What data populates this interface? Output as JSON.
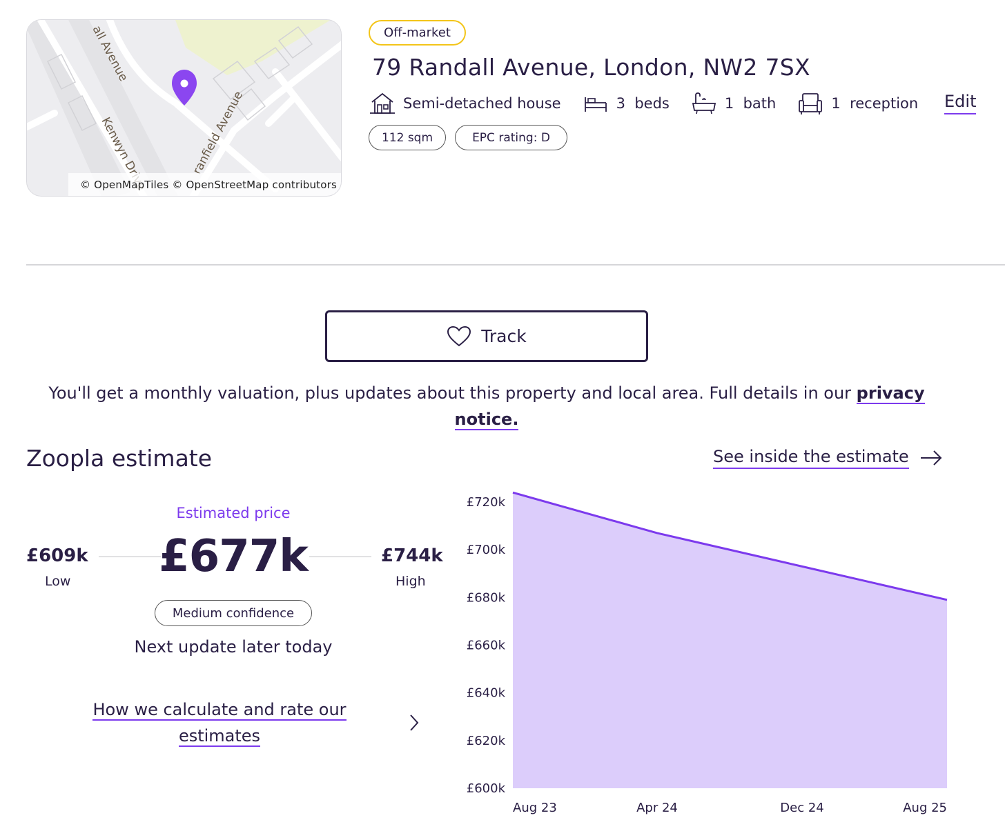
{
  "map": {
    "attribution": "© OpenMapTiles © OpenStreetMap contributors",
    "street_labels": [
      "all Avenue",
      "Kenwyn Drive",
      "ranfield Avenue"
    ]
  },
  "property": {
    "status_badge": "Off-market",
    "address": "79 Randall Avenue, London, NW2 7SX",
    "features": [
      {
        "icon": "house-icon",
        "value": "",
        "label": "Semi-detached house"
      },
      {
        "icon": "bed-icon",
        "value": "3",
        "label": "beds"
      },
      {
        "icon": "bath-icon",
        "value": "1",
        "label": "bath"
      },
      {
        "icon": "sofa-icon",
        "value": "1",
        "label": "reception"
      }
    ],
    "edit_label": "Edit",
    "size": "112 sqm",
    "epc": "EPC rating: D"
  },
  "track": {
    "button_label": "Track",
    "notice_text": "You'll get a monthly valuation, plus updates about this property and local area. Full details in our ",
    "privacy_link": "privacy notice."
  },
  "estimate": {
    "title": "Zoopla estimate",
    "see_inside": "See inside the estimate",
    "label": "Estimated price",
    "price": "£677k",
    "low_value": "£609k",
    "low_label": "Low",
    "high_value": "£744k",
    "high_label": "High",
    "confidence": "Medium confidence",
    "next_update": "Next update later today",
    "how_calc": "How we calculate and rate our estimates"
  },
  "colors": {
    "accent": "#7c3aed",
    "area_fill": "#dccdfb",
    "text": "#2a1f45",
    "badge_border": "#f3c519"
  },
  "chart_data": {
    "type": "area",
    "x": [
      "Aug 23",
      "Apr 24",
      "Dec 24",
      "Aug 25"
    ],
    "y_values": [
      724,
      707,
      693,
      679
    ],
    "y_unit": "£k",
    "ylim": [
      600,
      720
    ],
    "yticks": [
      "£600k",
      "£620k",
      "£640k",
      "£660k",
      "£680k",
      "£700k",
      "£720k"
    ],
    "ytick_values": [
      600,
      620,
      640,
      660,
      680,
      700,
      720
    ],
    "grid": false,
    "legend": "none"
  }
}
